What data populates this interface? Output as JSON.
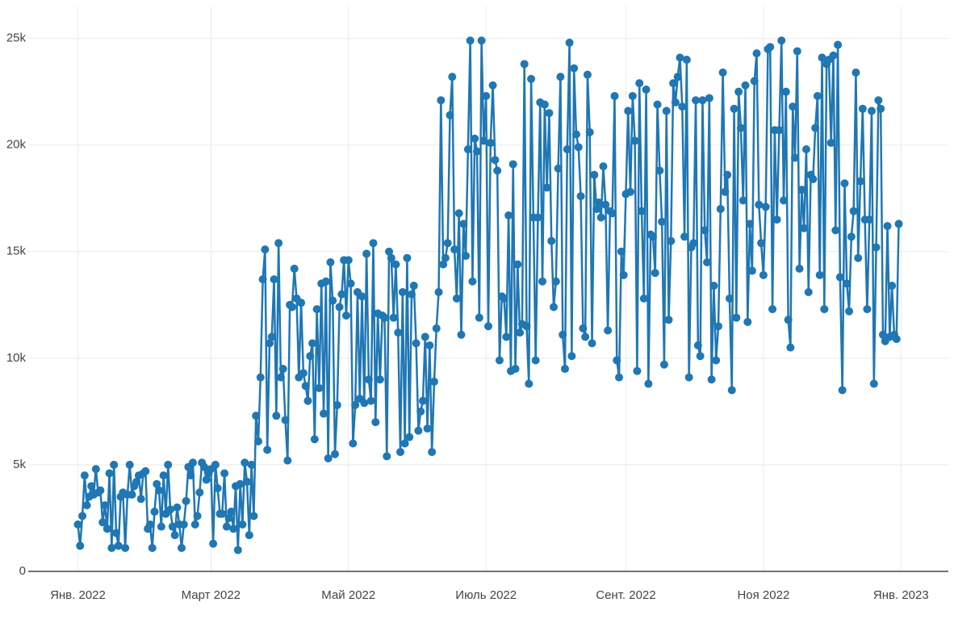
{
  "chart_data": {
    "type": "line",
    "color": "#1f77b4",
    "grid": true,
    "markers": true,
    "xlim": [
      "2021-12-10",
      "2023-01-22"
    ],
    "ylim": [
      0,
      26500
    ],
    "yticks": [
      0,
      {
        "value": 5000,
        "label": "5k"
      },
      {
        "value": 10000,
        "label": "10k"
      },
      {
        "value": 15000,
        "label": "15k"
      },
      {
        "value": 20000,
        "label": "20k"
      },
      {
        "value": 25000,
        "label": "25k"
      }
    ],
    "xticks": [
      {
        "value": "2022-01-01",
        "label": "Янв. 2022"
      },
      {
        "value": "2022-03-01",
        "label": "Март 2022"
      },
      {
        "value": "2022-05-01",
        "label": "Май 2022"
      },
      {
        "value": "2022-07-01",
        "label": "Июль 2022"
      },
      {
        "value": "2022-09-01",
        "label": "Сент. 2022"
      },
      {
        "value": "2022-11-01",
        "label": "Ноя 2022"
      },
      {
        "value": "2023-01-01",
        "label": "Янв. 2023"
      }
    ],
    "x": [
      "2022-01-01",
      "2022-01-02",
      "2022-01-03",
      "2022-01-04",
      "2022-01-05",
      "2022-01-06",
      "2022-01-07",
      "2022-01-08",
      "2022-01-09",
      "2022-01-10",
      "2022-01-11",
      "2022-01-12",
      "2022-01-13",
      "2022-01-14",
      "2022-01-15",
      "2022-01-16",
      "2022-01-17",
      "2022-01-18",
      "2022-01-19",
      "2022-01-20",
      "2022-01-21",
      "2022-01-22",
      "2022-01-23",
      "2022-01-24",
      "2022-01-25",
      "2022-01-26",
      "2022-01-27",
      "2022-01-28",
      "2022-01-29",
      "2022-01-30",
      "2022-01-31",
      "2022-02-01",
      "2022-02-02",
      "2022-02-03",
      "2022-02-04",
      "2022-02-05",
      "2022-02-06",
      "2022-02-07",
      "2022-02-08",
      "2022-02-09",
      "2022-02-10",
      "2022-02-11",
      "2022-02-12",
      "2022-02-13",
      "2022-02-14",
      "2022-02-15",
      "2022-02-16",
      "2022-02-17",
      "2022-02-18",
      "2022-02-19",
      "2022-02-20",
      "2022-02-21",
      "2022-02-22",
      "2022-02-23",
      "2022-02-24",
      "2022-02-25",
      "2022-02-26",
      "2022-02-27",
      "2022-02-28",
      "2022-03-01",
      "2022-03-02",
      "2022-03-03",
      "2022-03-04",
      "2022-03-05",
      "2022-03-06",
      "2022-03-07",
      "2022-03-08",
      "2022-03-09",
      "2022-03-10",
      "2022-03-11",
      "2022-03-12",
      "2022-03-13",
      "2022-03-14",
      "2022-03-15",
      "2022-03-16",
      "2022-03-17",
      "2022-03-18",
      "2022-03-19",
      "2022-03-20",
      "2022-03-21",
      "2022-03-22",
      "2022-03-23",
      "2022-03-24",
      "2022-03-25",
      "2022-03-26",
      "2022-03-27",
      "2022-03-28",
      "2022-03-29",
      "2022-03-30",
      "2022-03-31",
      "2022-04-01",
      "2022-04-02",
      "2022-04-03",
      "2022-04-04",
      "2022-04-05",
      "2022-04-06",
      "2022-04-07",
      "2022-04-08",
      "2022-04-09",
      "2022-04-10",
      "2022-04-11",
      "2022-04-12",
      "2022-04-13",
      "2022-04-14",
      "2022-04-15",
      "2022-04-16",
      "2022-04-17",
      "2022-04-18",
      "2022-04-19",
      "2022-04-20",
      "2022-04-21",
      "2022-04-22",
      "2022-04-23",
      "2022-04-24",
      "2022-04-25",
      "2022-04-26",
      "2022-04-27",
      "2022-04-28",
      "2022-04-29",
      "2022-04-30",
      "2022-05-01",
      "2022-05-02",
      "2022-05-03",
      "2022-05-04",
      "2022-05-05",
      "2022-05-06",
      "2022-05-07",
      "2022-05-08",
      "2022-05-09",
      "2022-05-10",
      "2022-05-11",
      "2022-05-12",
      "2022-05-13",
      "2022-05-14",
      "2022-05-15",
      "2022-05-16",
      "2022-05-17",
      "2022-05-18",
      "2022-05-19",
      "2022-05-20",
      "2022-05-21",
      "2022-05-22",
      "2022-05-23",
      "2022-05-24",
      "2022-05-25",
      "2022-05-26",
      "2022-05-27",
      "2022-05-28",
      "2022-05-29",
      "2022-05-30",
      "2022-05-31",
      "2022-06-01",
      "2022-06-02",
      "2022-06-03",
      "2022-06-04",
      "2022-06-05",
      "2022-06-06",
      "2022-06-07",
      "2022-06-08",
      "2022-06-09",
      "2022-06-10",
      "2022-06-11",
      "2022-06-12",
      "2022-06-13",
      "2022-06-14",
      "2022-06-15",
      "2022-06-16",
      "2022-06-17",
      "2022-06-18",
      "2022-06-19",
      "2022-06-20",
      "2022-06-21",
      "2022-06-22",
      "2022-06-23",
      "2022-06-24",
      "2022-06-25",
      "2022-06-26",
      "2022-06-27",
      "2022-06-28",
      "2022-06-29",
      "2022-06-30",
      "2022-07-01",
      "2022-07-02",
      "2022-07-03",
      "2022-07-04",
      "2022-07-05",
      "2022-07-06",
      "2022-07-07",
      "2022-07-08",
      "2022-07-09",
      "2022-07-10",
      "2022-07-11",
      "2022-07-12",
      "2022-07-13",
      "2022-07-14",
      "2022-07-15",
      "2022-07-16",
      "2022-07-17",
      "2022-07-18",
      "2022-07-19",
      "2022-07-20",
      "2022-07-21",
      "2022-07-22",
      "2022-07-23",
      "2022-07-24",
      "2022-07-25",
      "2022-07-26",
      "2022-07-27",
      "2022-07-28",
      "2022-07-29",
      "2022-07-30",
      "2022-07-31",
      "2022-08-01",
      "2022-08-02",
      "2022-08-03",
      "2022-08-04",
      "2022-08-05",
      "2022-08-06",
      "2022-08-07",
      "2022-08-08",
      "2022-08-09",
      "2022-08-10",
      "2022-08-11",
      "2022-08-12",
      "2022-08-13",
      "2022-08-14",
      "2022-08-15",
      "2022-08-16",
      "2022-08-17",
      "2022-08-18",
      "2022-08-19",
      "2022-08-20",
      "2022-08-21",
      "2022-08-22",
      "2022-08-23",
      "2022-08-24",
      "2022-08-25",
      "2022-08-26",
      "2022-08-27",
      "2022-08-28",
      "2022-08-29",
      "2022-08-30",
      "2022-08-31",
      "2022-09-01",
      "2022-09-02",
      "2022-09-03",
      "2022-09-04",
      "2022-09-05",
      "2022-09-06",
      "2022-09-07",
      "2022-09-08",
      "2022-09-09",
      "2022-09-10",
      "2022-09-11",
      "2022-09-12",
      "2022-09-13",
      "2022-09-14",
      "2022-09-15",
      "2022-09-16",
      "2022-09-17",
      "2022-09-18",
      "2022-09-19",
      "2022-09-20",
      "2022-09-21",
      "2022-09-22",
      "2022-09-23",
      "2022-09-24",
      "2022-09-25",
      "2022-09-26",
      "2022-09-27",
      "2022-09-28",
      "2022-09-29",
      "2022-09-30",
      "2022-10-01",
      "2022-10-02",
      "2022-10-03",
      "2022-10-04",
      "2022-10-05",
      "2022-10-06",
      "2022-10-07",
      "2022-10-08",
      "2022-10-09",
      "2022-10-10",
      "2022-10-11",
      "2022-10-12",
      "2022-10-13",
      "2022-10-14",
      "2022-10-15",
      "2022-10-16",
      "2022-10-17",
      "2022-10-18",
      "2022-10-19",
      "2022-10-20",
      "2022-10-21",
      "2022-10-22",
      "2022-10-23",
      "2022-10-24",
      "2022-10-25",
      "2022-10-26",
      "2022-10-27",
      "2022-10-28",
      "2022-10-29",
      "2022-10-30",
      "2022-10-31",
      "2022-11-01",
      "2022-11-02",
      "2022-11-03",
      "2022-11-04",
      "2022-11-05",
      "2022-11-06",
      "2022-11-07",
      "2022-11-08",
      "2022-11-09",
      "2022-11-10",
      "2022-11-11",
      "2022-11-12",
      "2022-11-13",
      "2022-11-14",
      "2022-11-15",
      "2022-11-16",
      "2022-11-17",
      "2022-11-18",
      "2022-11-19",
      "2022-11-20",
      "2022-11-21",
      "2022-11-22",
      "2022-11-23",
      "2022-11-24",
      "2022-11-25",
      "2022-11-26",
      "2022-11-27",
      "2022-11-28",
      "2022-11-29",
      "2022-11-30",
      "2022-12-01",
      "2022-12-02",
      "2022-12-03",
      "2022-12-04",
      "2022-12-05",
      "2022-12-06",
      "2022-12-07",
      "2022-12-08",
      "2022-12-09",
      "2022-12-10",
      "2022-12-11",
      "2022-12-12",
      "2022-12-13",
      "2022-12-14",
      "2022-12-15",
      "2022-12-16",
      "2022-12-17",
      "2022-12-18",
      "2022-12-19",
      "2022-12-20",
      "2022-12-21",
      "2022-12-22",
      "2022-12-23",
      "2022-12-24",
      "2022-12-25",
      "2022-12-26",
      "2022-12-27",
      "2022-12-28",
      "2022-12-29",
      "2022-12-30",
      "2022-12-31"
    ],
    "values": [
      2200,
      1200,
      2600,
      4500,
      3100,
      3500,
      4000,
      3600,
      4800,
      3700,
      3800,
      2300,
      3100,
      2000,
      4600,
      1100,
      5000,
      1800,
      1200,
      3500,
      3700,
      1100,
      3600,
      5000,
      3600,
      4000,
      4200,
      4500,
      3400,
      4600,
      4700,
      2000,
      2200,
      1100,
      2800,
      4100,
      3800,
      2100,
      4500,
      2700,
      5000,
      2900,
      2100,
      1700,
      3000,
      2200,
      1100,
      2200,
      3300,
      4900,
      4500,
      5100,
      2200,
      2600,
      3700,
      5100,
      4900,
      4300,
      4600,
      4800,
      1300,
      5000,
      3900,
      2700,
      2700,
      4600,
      2100,
      2500,
      2800,
      2000,
      4000,
      1000,
      4100,
      2200,
      5100,
      4200,
      1700,
      5000,
      2600,
      7300,
      6100,
      9100,
      13700,
      15100,
      5700,
      10700,
      11000,
      13700,
      7300,
      15400,
      9100,
      9500,
      7100,
      5200,
      12500,
      12400,
      14200,
      12800,
      9100,
      12600,
      9300,
      8700,
      8000,
      10100,
      10700,
      6200,
      12300,
      8600,
      13500,
      7400,
      13600,
      5300,
      14500,
      12700,
      5500,
      7800,
      12400,
      13000,
      14600,
      12000,
      14600,
      13500,
      6000,
      7800,
      13100,
      8100,
      12900,
      7900,
      14900,
      9000,
      8000,
      15400,
      7000,
      12100,
      9000,
      12000,
      11900,
      5400,
      15000,
      14700,
      11900,
      14400,
      11200,
      5600,
      13100,
      6000,
      14700,
      6300,
      13000,
      13400,
      10700,
      6600,
      7500,
      8000,
      11000,
      6700,
      10600,
      5600,
      8900,
      11400,
      13100,
      22100,
      14400,
      14700,
      15400,
      21400,
      23200,
      15100,
      12800,
      16800,
      11100,
      16300,
      14800,
      19800,
      24900,
      13600,
      20300,
      19700,
      11900,
      24900,
      20200,
      22300,
      11500,
      20100,
      22800,
      19300,
      18800,
      9900,
      12900,
      12800,
      11000,
      16700,
      9400,
      19100,
      9500,
      14400,
      11200,
      11600,
      23800,
      11500,
      8800,
      23100,
      16600,
      9900,
      16600,
      22000,
      13600,
      21900,
      18000,
      21500,
      15500,
      12400,
      13600,
      18900,
      23200,
      11100,
      9500,
      19800,
      24800,
      10100,
      23600,
      20500,
      19900,
      17600,
      11400,
      11000,
      23300,
      20600,
      10700,
      18600,
      17000,
      17300,
      16600,
      19000,
      17200,
      11300,
      16900,
      16800,
      22300,
      9900,
      9100,
      15000,
      13900,
      17700,
      21600,
      17800,
      22300,
      20200,
      9400,
      22900,
      16900,
      12800,
      22600,
      8800,
      15800,
      15700,
      14000,
      21900,
      18800,
      16400,
      9700,
      21600,
      11800,
      15500,
      22900,
      22000,
      23200,
      24100,
      21800,
      15700,
      24000,
      9100,
      15200,
      15400,
      22100,
      10600,
      10100,
      22100,
      16000,
      14500,
      22200,
      9000,
      13400,
      9900,
      11500,
      17000,
      23400,
      17800,
      18600,
      12800,
      8500,
      21700,
      11900,
      22500,
      20800,
      17400,
      22800,
      11700,
      16300,
      14100,
      23000,
      24300,
      17200,
      15400,
      13900,
      17100,
      24500,
      24600,
      12300,
      20700,
      16500,
      20700,
      24900,
      17400,
      22500,
      11800,
      10500,
      21800,
      19400,
      24400,
      14200,
      17900,
      16100,
      19800,
      13100,
      18600,
      18400,
      20800,
      22300,
      13900,
      24100,
      12300,
      23800,
      24000,
      20100,
      24200,
      16000,
      24700,
      13800,
      8500,
      18200,
      13500,
      12200,
      15700,
      16900,
      23400,
      14700,
      18300,
      21700,
      16500,
      12300,
      16500,
      21600,
      8800,
      15200,
      22100,
      21700,
      11100,
      10800,
      16200,
      11000,
      13400,
      11100,
      10900,
      16300
    ]
  }
}
